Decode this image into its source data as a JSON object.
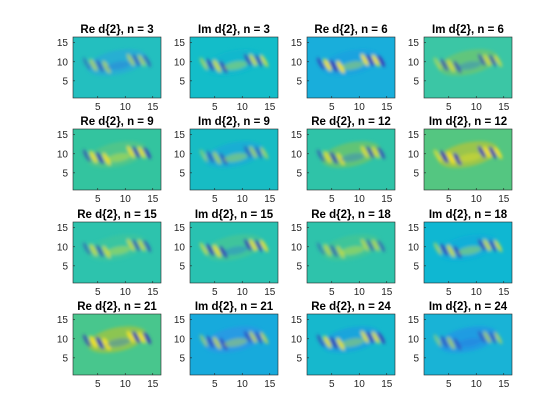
{
  "chart_data": {
    "type": "heatmap",
    "rows": 4,
    "cols": 4,
    "xlim": [
      0.5,
      16.5
    ],
    "ylim": [
      0.5,
      16.5
    ],
    "xticks": [
      5,
      10,
      15
    ],
    "yticks": [
      5,
      10,
      15
    ],
    "colormap": [
      "#3e26a8",
      "#2f7df8",
      "#19b2d6",
      "#35c59a",
      "#a9c334",
      "#fcbb3d",
      "#f9fb15"
    ],
    "panels": [
      {
        "title": "Re d{2}, n = 3",
        "bg": "#23bfbf",
        "tone": "#2aa9d8"
      },
      {
        "title": "Im d{2}, n = 3",
        "bg": "#13bdc9",
        "tone": "#16b6cf"
      },
      {
        "title": "Re d{2}, n = 6",
        "bg": "#19aedb",
        "tone": "#1aa0e0"
      },
      {
        "title": "Im d{2}, n = 6",
        "bg": "#3bc6a5",
        "tone": "#6fc56f"
      },
      {
        "title": "Re d{2}, n = 9",
        "bg": "#33c49f",
        "tone": "#58c584"
      },
      {
        "title": "Im d{2}, n = 9",
        "bg": "#17bcc4",
        "tone": "#1aa9d8"
      },
      {
        "title": "Re d{2}, n = 12",
        "bg": "#2fc3a8",
        "tone": "#71c465"
      },
      {
        "title": "Im d{2}, n = 12",
        "bg": "#54c681",
        "tone": "#b2c43a"
      },
      {
        "title": "Re d{2}, n = 15",
        "bg": "#2dc3ad",
        "tone": "#3cc59c"
      },
      {
        "title": "Im d{2}, n = 15",
        "bg": "#29c2b1",
        "tone": "#46c594"
      },
      {
        "title": "Re d{2}, n = 18",
        "bg": "#2ec3ab",
        "tone": "#44c593"
      },
      {
        "title": "Im d{2}, n = 18",
        "bg": "#0fb7d2",
        "tone": "#14acd9"
      },
      {
        "title": "Re d{2}, n = 21",
        "bg": "#48c68d",
        "tone": "#a3c43d"
      },
      {
        "title": "Im d{2}, n = 21",
        "bg": "#17aadc",
        "tone": "#2b96e6"
      },
      {
        "title": "Re d{2}, n = 24",
        "bg": "#16b8cd",
        "tone": "#199fe0"
      },
      {
        "title": "Im d{2}, n = 24",
        "bg": "#19b3d6",
        "tone": "#2394e6"
      }
    ]
  }
}
